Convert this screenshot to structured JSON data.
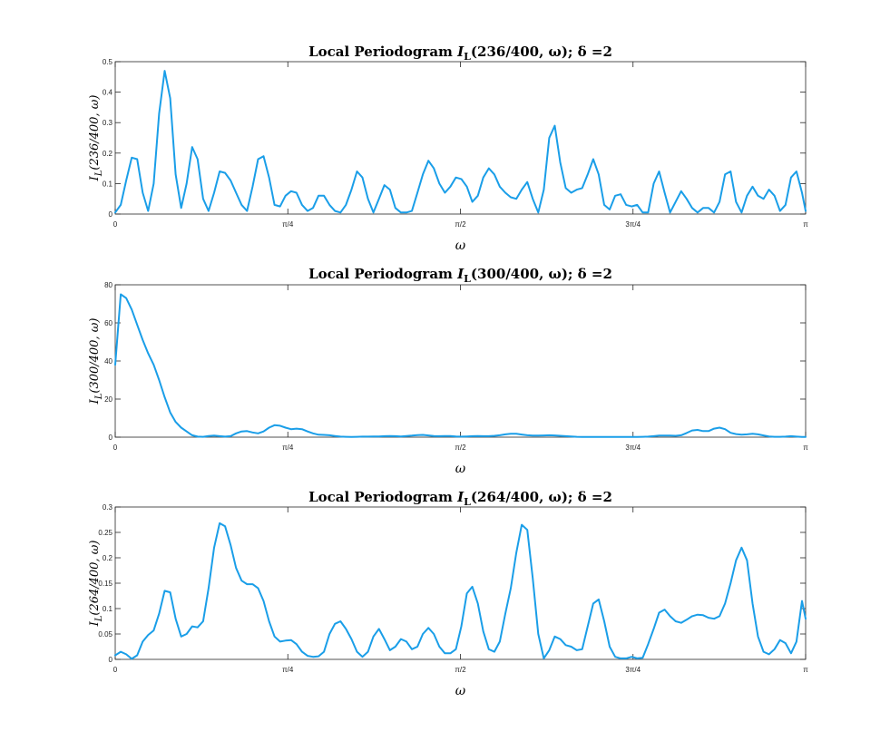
{
  "chart_data": [
    {
      "type": "line",
      "title": "Local Periodogram I_L(236/400, ω);   δ =2",
      "title_parts": {
        "main": "Local Periodogram ",
        "I": "I",
        "sub": "L",
        "rest": "(236/400, ω);   δ =2"
      },
      "xlabel": "ω",
      "ylabel": "I_L(236/400, ω)",
      "ylabel_parts": {
        "I": "I",
        "sub": "L",
        "rest": "(236/400, ω)"
      },
      "xlim": [
        0,
        3.14159
      ],
      "ylim": [
        0,
        0.5
      ],
      "yticks": [
        0,
        0.1,
        0.2,
        0.3,
        0.4,
        0.5
      ],
      "ytick_labels": [
        "0",
        "0.1",
        "0.2",
        "0.3",
        "0.4",
        "0.5"
      ],
      "xticks": [
        0,
        0.7854,
        1.5708,
        2.3562,
        3.1416
      ],
      "xtick_labels": [
        "0",
        "π/4",
        "π/2",
        "3π/4",
        "π"
      ],
      "grid": false,
      "series": [
        {
          "color": "#1a9ee8",
          "x": [
            0.0,
            0.025,
            0.05,
            0.075,
            0.1,
            0.125,
            0.15,
            0.175,
            0.2,
            0.225,
            0.25,
            0.275,
            0.3,
            0.325,
            0.35,
            0.375,
            0.4,
            0.425,
            0.45,
            0.475,
            0.5,
            0.525,
            0.55,
            0.575,
            0.6,
            0.625,
            0.65,
            0.675,
            0.7,
            0.725,
            0.75,
            0.775,
            0.8,
            0.825,
            0.85,
            0.875,
            0.9,
            0.925,
            0.95,
            0.975,
            1.0,
            1.025,
            1.05,
            1.075,
            1.1,
            1.125,
            1.15,
            1.175,
            1.2,
            1.225,
            1.25,
            1.275,
            1.3,
            1.325,
            1.35,
            1.375,
            1.4,
            1.425,
            1.45,
            1.475,
            1.5,
            1.525,
            1.55,
            1.575,
            1.6,
            1.625,
            1.65,
            1.675,
            1.7,
            1.725,
            1.75,
            1.775,
            1.8,
            1.825,
            1.85,
            1.875,
            1.9,
            1.925,
            1.95,
            1.975,
            2.0,
            2.025,
            2.05,
            2.075,
            2.1,
            2.125,
            2.15,
            2.175,
            2.2,
            2.225,
            2.25,
            2.275,
            2.3,
            2.325,
            2.35,
            2.375,
            2.4,
            2.425,
            2.45,
            2.475,
            2.5,
            2.525,
            2.55,
            2.575,
            2.6,
            2.625,
            2.65,
            2.675,
            2.7,
            2.725,
            2.75,
            2.775,
            2.8,
            2.825,
            2.85,
            2.875,
            2.9,
            2.925,
            2.95,
            2.975,
            3.0,
            3.025,
            3.05,
            3.075,
            3.1,
            3.125,
            3.142
          ],
          "y": [
            0.005,
            0.03,
            0.11,
            0.185,
            0.18,
            0.07,
            0.01,
            0.1,
            0.33,
            0.47,
            0.38,
            0.13,
            0.02,
            0.1,
            0.22,
            0.18,
            0.05,
            0.01,
            0.07,
            0.14,
            0.135,
            0.11,
            0.07,
            0.03,
            0.01,
            0.09,
            0.18,
            0.19,
            0.12,
            0.03,
            0.025,
            0.06,
            0.075,
            0.07,
            0.03,
            0.01,
            0.02,
            0.06,
            0.06,
            0.03,
            0.01,
            0.005,
            0.03,
            0.08,
            0.14,
            0.12,
            0.05,
            0.005,
            0.05,
            0.095,
            0.08,
            0.02,
            0.005,
            0.005,
            0.01,
            0.07,
            0.13,
            0.175,
            0.15,
            0.1,
            0.07,
            0.09,
            0.12,
            0.115,
            0.09,
            0.04,
            0.06,
            0.12,
            0.15,
            0.13,
            0.09,
            0.07,
            0.055,
            0.05,
            0.08,
            0.105,
            0.05,
            0.005,
            0.08,
            0.25,
            0.29,
            0.17,
            0.085,
            0.07,
            0.08,
            0.085,
            0.13,
            0.18,
            0.13,
            0.03,
            0.015,
            0.06,
            0.065,
            0.03,
            0.025,
            0.03,
            0.005,
            0.005,
            0.1,
            0.14,
            0.07,
            0.005,
            0.04,
            0.075,
            0.05,
            0.02,
            0.005,
            0.02,
            0.02,
            0.005,
            0.04,
            0.13,
            0.14,
            0.04,
            0.005,
            0.06,
            0.09,
            0.06,
            0.05,
            0.08,
            0.06,
            0.01,
            0.03,
            0.12,
            0.14,
            0.07,
            0.01
          ]
        }
      ]
    },
    {
      "type": "line",
      "title": "Local Periodogram I_L(300/400, ω);   δ =2",
      "title_parts": {
        "main": "Local Periodogram ",
        "I": "I",
        "sub": "L",
        "rest": "(300/400, ω);   δ =2"
      },
      "xlabel": "ω",
      "ylabel": "I_L(300/400, ω)",
      "ylabel_parts": {
        "I": "I",
        "sub": "L",
        "rest": "(300/400, ω)"
      },
      "xlim": [
        0,
        3.14159
      ],
      "ylim": [
        0,
        80
      ],
      "yticks": [
        0,
        20,
        40,
        60,
        80
      ],
      "ytick_labels": [
        "0",
        "20",
        "40",
        "60",
        "80"
      ],
      "xticks": [
        0,
        0.7854,
        1.5708,
        2.3562,
        3.1416
      ],
      "xtick_labels": [
        "0",
        "π/4",
        "π/2",
        "3π/4",
        "π"
      ],
      "grid": false,
      "series": [
        {
          "color": "#1a9ee8",
          "x": [
            0.0,
            0.025,
            0.05,
            0.075,
            0.1,
            0.125,
            0.15,
            0.175,
            0.2,
            0.225,
            0.25,
            0.275,
            0.3,
            0.325,
            0.35,
            0.375,
            0.4,
            0.425,
            0.45,
            0.475,
            0.5,
            0.525,
            0.55,
            0.575,
            0.6,
            0.625,
            0.65,
            0.675,
            0.7,
            0.725,
            0.75,
            0.775,
            0.8,
            0.825,
            0.85,
            0.875,
            0.9,
            0.925,
            0.95,
            0.975,
            1.0,
            1.025,
            1.05,
            1.075,
            1.1,
            1.125,
            1.15,
            1.175,
            1.2,
            1.225,
            1.25,
            1.275,
            1.3,
            1.325,
            1.35,
            1.375,
            1.4,
            1.425,
            1.45,
            1.475,
            1.5,
            1.525,
            1.55,
            1.575,
            1.6,
            1.625,
            1.65,
            1.675,
            1.7,
            1.725,
            1.75,
            1.775,
            1.8,
            1.825,
            1.85,
            1.875,
            1.9,
            1.925,
            1.95,
            1.975,
            2.0,
            2.025,
            2.05,
            2.075,
            2.1,
            2.125,
            2.15,
            2.175,
            2.2,
            2.225,
            2.25,
            2.275,
            2.3,
            2.325,
            2.35,
            2.375,
            2.4,
            2.425,
            2.45,
            2.475,
            2.5,
            2.525,
            2.55,
            2.575,
            2.6,
            2.625,
            2.65,
            2.675,
            2.7,
            2.725,
            2.75,
            2.775,
            2.8,
            2.825,
            2.85,
            2.875,
            2.9,
            2.925,
            2.95,
            2.975,
            3.0,
            3.025,
            3.05,
            3.075,
            3.1,
            3.125,
            3.142
          ],
          "y": [
            38,
            75,
            73,
            67,
            59,
            51,
            44,
            38,
            30,
            21,
            13,
            8,
            5,
            3,
            1,
            0.3,
            0.2,
            0.6,
            0.8,
            0.5,
            0.3,
            0.5,
            2,
            3,
            3.2,
            2.5,
            2,
            3,
            5,
            6.3,
            6,
            5,
            4.2,
            4.5,
            4.2,
            3,
            2,
            1.3,
            1.2,
            1,
            0.6,
            0.3,
            0.2,
            0.1,
            0.2,
            0.3,
            0.3,
            0.4,
            0.4,
            0.5,
            0.6,
            0.5,
            0.4,
            0.6,
            0.8,
            1.1,
            1.2,
            0.9,
            0.6,
            0.5,
            0.6,
            0.6,
            0.4,
            0.3,
            0.4,
            0.5,
            0.6,
            0.5,
            0.5,
            0.7,
            1,
            1.5,
            1.8,
            1.8,
            1.4,
            1,
            0.8,
            0.8,
            0.9,
            1,
            0.9,
            0.7,
            0.5,
            0.4,
            0.2,
            0.1,
            0.1,
            0.1,
            0.1,
            0.1,
            0.1,
            0.1,
            0.1,
            0.1,
            0.1,
            0.1,
            0.2,
            0.3,
            0.5,
            0.8,
            0.8,
            0.8,
            0.7,
            1,
            2.2,
            3.5,
            3.8,
            3.2,
            3.2,
            4.5,
            5,
            4.2,
            2.3,
            1.6,
            1.3,
            1.5,
            1.8,
            1.5,
            0.9,
            0.4,
            0.2,
            0.2,
            0.3,
            0.5,
            0.3,
            0.1,
            0.1
          ]
        }
      ]
    },
    {
      "type": "line",
      "title": "Local Periodogram I_L(264/400, ω);   δ =2",
      "title_parts": {
        "main": "Local Periodogram ",
        "I": "I",
        "sub": "L",
        "rest": "(264/400, ω);   δ =2"
      },
      "xlabel": "ω",
      "ylabel": "I_L(264/400, ω)",
      "ylabel_parts": {
        "I": "I",
        "sub": "L",
        "rest": "(264/400, ω)"
      },
      "xlim": [
        0,
        3.14159
      ],
      "ylim": [
        0,
        0.3
      ],
      "yticks": [
        0,
        0.05,
        0.1,
        0.15,
        0.2,
        0.25,
        0.3
      ],
      "ytick_labels": [
        "0",
        "0.05",
        "0.1",
        "0.15",
        "0.2",
        "0.25",
        "0.3"
      ],
      "xticks": [
        0,
        0.7854,
        1.5708,
        2.3562,
        3.1416
      ],
      "xtick_labels": [
        "0",
        "π/4",
        "π/2",
        "3π/4",
        "π"
      ],
      "grid": false,
      "series": [
        {
          "color": "#1a9ee8",
          "x": [
            0.0,
            0.025,
            0.05,
            0.075,
            0.1,
            0.125,
            0.15,
            0.175,
            0.2,
            0.225,
            0.25,
            0.275,
            0.3,
            0.325,
            0.35,
            0.375,
            0.4,
            0.425,
            0.45,
            0.475,
            0.5,
            0.525,
            0.55,
            0.575,
            0.6,
            0.625,
            0.65,
            0.675,
            0.7,
            0.725,
            0.75,
            0.775,
            0.8,
            0.825,
            0.85,
            0.875,
            0.9,
            0.925,
            0.95,
            0.975,
            1.0,
            1.025,
            1.05,
            1.075,
            1.1,
            1.125,
            1.15,
            1.175,
            1.2,
            1.225,
            1.25,
            1.275,
            1.3,
            1.325,
            1.35,
            1.375,
            1.4,
            1.425,
            1.45,
            1.475,
            1.5,
            1.525,
            1.55,
            1.575,
            1.6,
            1.625,
            1.65,
            1.675,
            1.7,
            1.725,
            1.75,
            1.775,
            1.8,
            1.825,
            1.85,
            1.875,
            1.9,
            1.925,
            1.95,
            1.975,
            2.0,
            2.025,
            2.05,
            2.075,
            2.1,
            2.125,
            2.15,
            2.175,
            2.2,
            2.225,
            2.25,
            2.275,
            2.3,
            2.325,
            2.35,
            2.375,
            2.4,
            2.425,
            2.45,
            2.475,
            2.5,
            2.525,
            2.55,
            2.575,
            2.6,
            2.625,
            2.65,
            2.675,
            2.7,
            2.725,
            2.75,
            2.775,
            2.8,
            2.825,
            2.85,
            2.875,
            2.9,
            2.925,
            2.95,
            2.975,
            3.0,
            3.025,
            3.05,
            3.075,
            3.1,
            3.125,
            3.142
          ],
          "y": [
            0.008,
            0.015,
            0.01,
            0.001,
            0.008,
            0.035,
            0.048,
            0.057,
            0.09,
            0.135,
            0.132,
            0.08,
            0.045,
            0.05,
            0.065,
            0.063,
            0.075,
            0.14,
            0.22,
            0.268,
            0.262,
            0.225,
            0.18,
            0.155,
            0.148,
            0.148,
            0.14,
            0.115,
            0.075,
            0.045,
            0.035,
            0.037,
            0.038,
            0.03,
            0.015,
            0.007,
            0.005,
            0.006,
            0.015,
            0.05,
            0.07,
            0.075,
            0.06,
            0.04,
            0.015,
            0.005,
            0.015,
            0.045,
            0.06,
            0.04,
            0.018,
            0.025,
            0.04,
            0.035,
            0.02,
            0.025,
            0.05,
            0.062,
            0.05,
            0.025,
            0.012,
            0.012,
            0.02,
            0.065,
            0.13,
            0.143,
            0.11,
            0.055,
            0.02,
            0.015,
            0.035,
            0.09,
            0.14,
            0.21,
            0.265,
            0.255,
            0.16,
            0.05,
            0.002,
            0.018,
            0.045,
            0.04,
            0.028,
            0.025,
            0.018,
            0.02,
            0.065,
            0.11,
            0.118,
            0.075,
            0.025,
            0.005,
            0.002,
            0.002,
            0.005,
            0.002,
            0.003,
            0.03,
            0.06,
            0.092,
            0.098,
            0.085,
            0.075,
            0.072,
            0.078,
            0.085,
            0.088,
            0.087,
            0.082,
            0.08,
            0.085,
            0.11,
            0.15,
            0.195,
            0.22,
            0.195,
            0.11,
            0.045,
            0.015,
            0.01,
            0.02,
            0.038,
            0.032,
            0.012,
            0.035,
            0.115,
            0.08
          ]
        }
      ]
    }
  ]
}
